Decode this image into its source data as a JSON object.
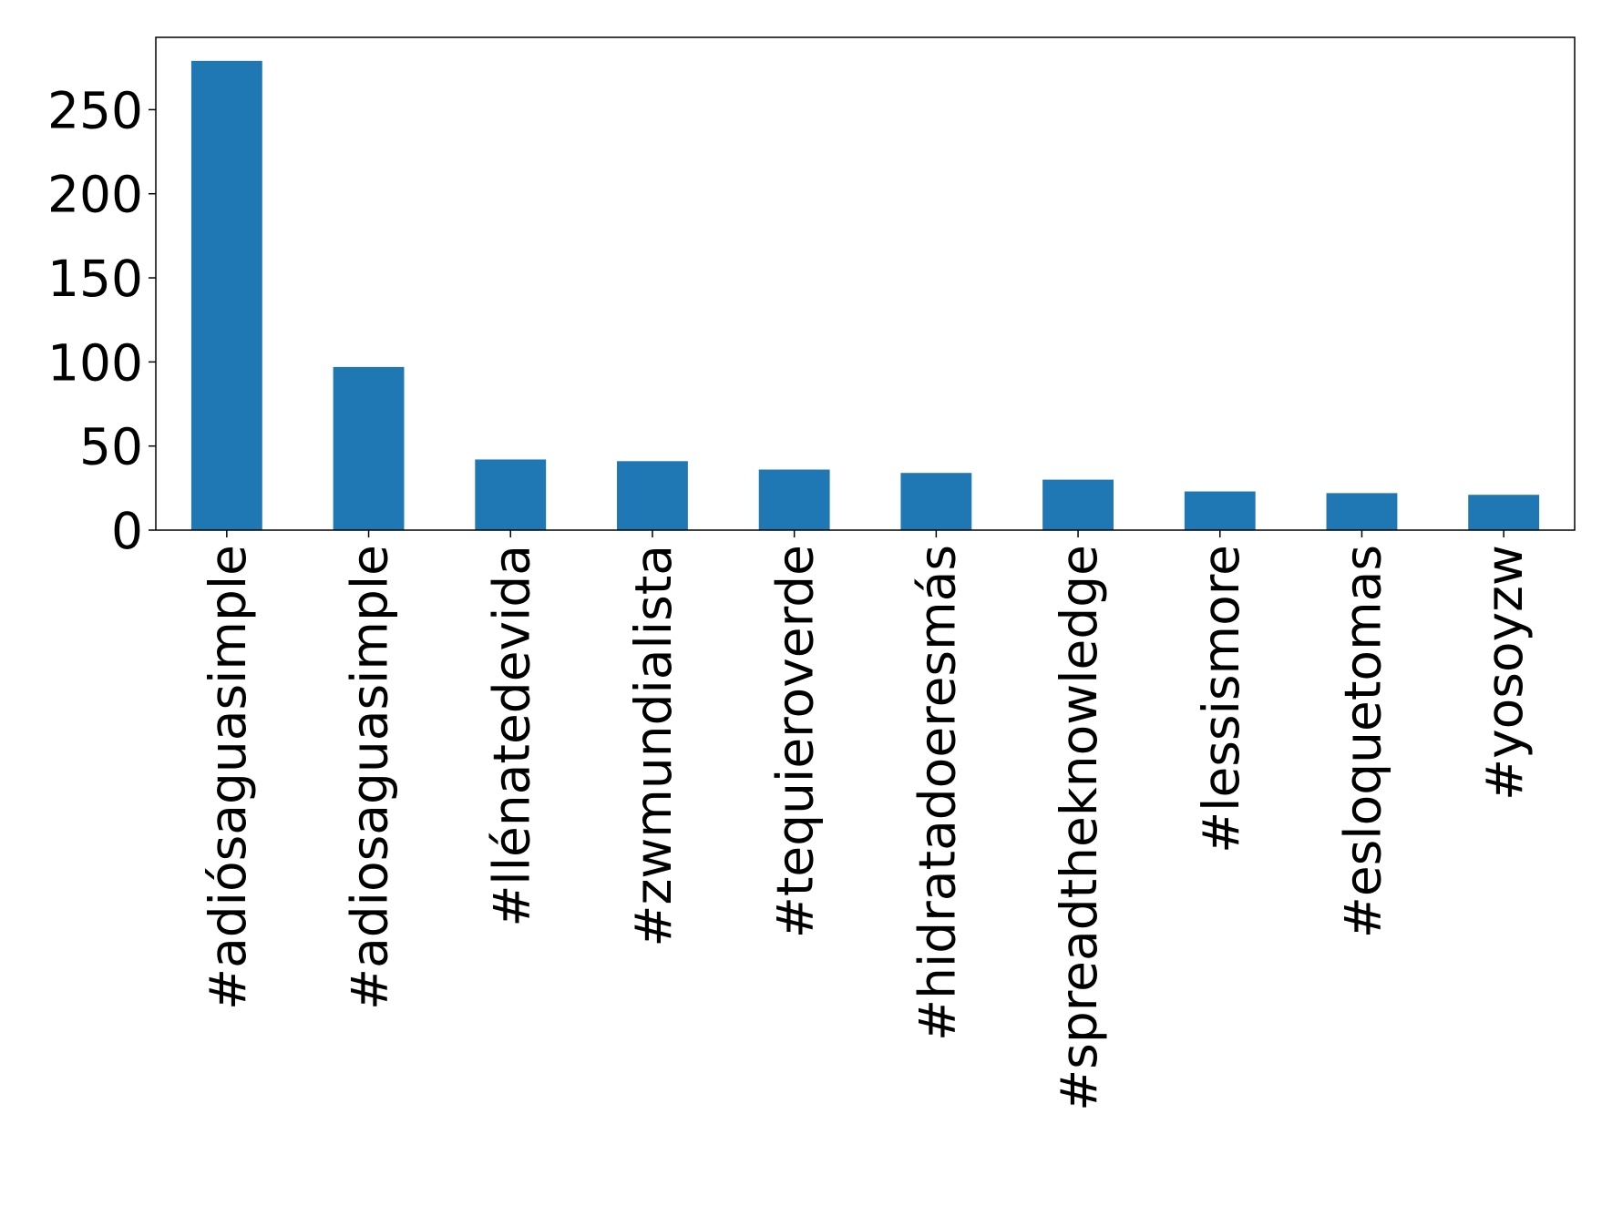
{
  "chart_data": {
    "type": "bar",
    "categories": [
      "#adiósaguasimple",
      "#adiosaguasimple",
      "#llénatedevida",
      "#zwmundialista",
      "#tequieroverde",
      "#hidratadoeresmás",
      "#spreadtheknowledge",
      "#lessismore",
      "#esloquetomas",
      "#yosoyzw"
    ],
    "values": [
      279,
      97,
      42,
      41,
      36,
      34,
      30,
      23,
      22,
      21
    ],
    "color": "#1f77b4",
    "ylim": [
      0,
      293
    ],
    "yticks": [
      0,
      50,
      100,
      150,
      200,
      250
    ],
    "grid": false
  }
}
